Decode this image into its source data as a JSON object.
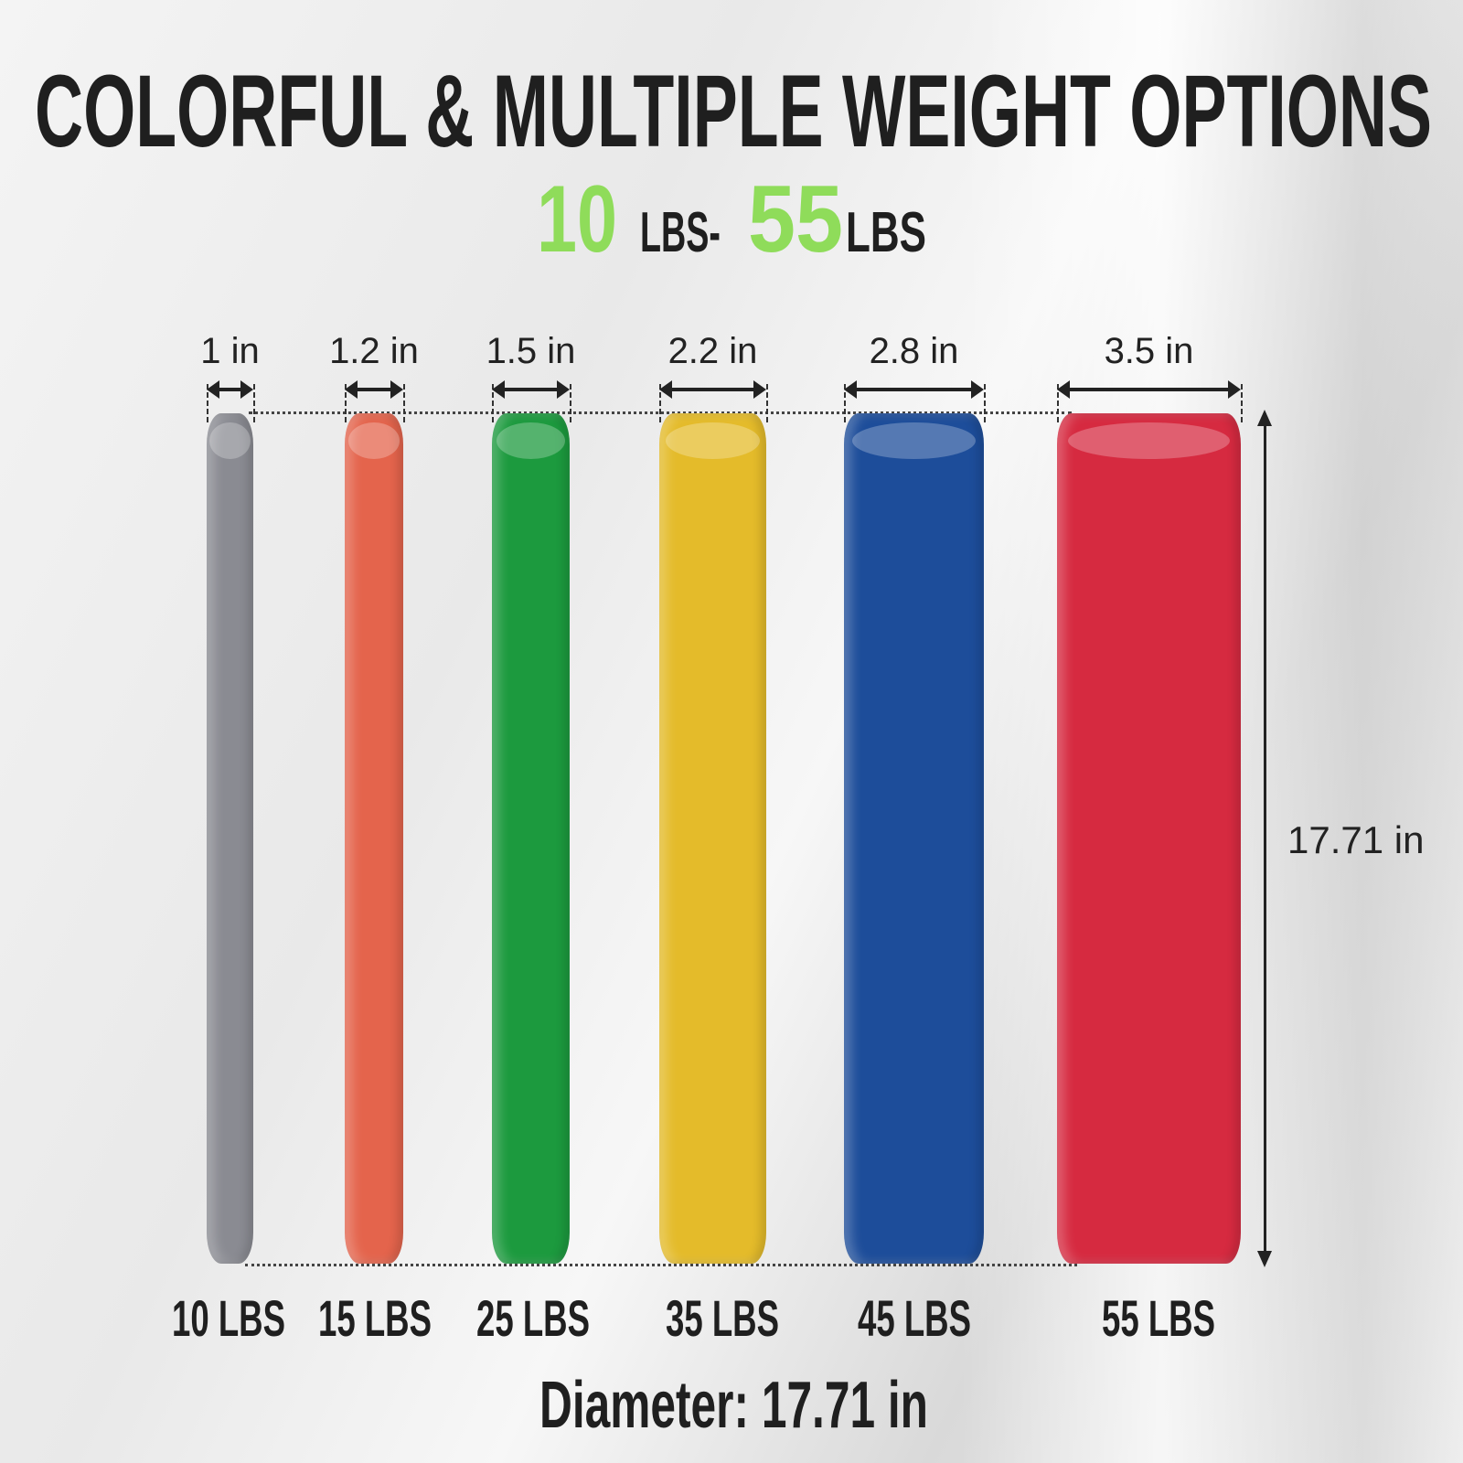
{
  "title": "COLORFUL & MULTIPLE WEIGHT OPTIONS",
  "subtitle": {
    "min_value": "10",
    "min_unit": "LBS-",
    "max_value": "55",
    "max_unit": "LBS"
  },
  "accent_color": "#8fdc5a",
  "plates": [
    {
      "weight": "10 LBS",
      "thickness": "1 in",
      "color": "#8a8b92"
    },
    {
      "weight": "15 LBS",
      "thickness": "1.2 in",
      "color": "#e4644c"
    },
    {
      "weight": "25 LBS",
      "thickness": "1.5 in",
      "color": "#1c9a3e"
    },
    {
      "weight": "35 LBS",
      "thickness": "2.2 in",
      "color": "#e4bb2a"
    },
    {
      "weight": "45 LBS",
      "thickness": "2.8 in",
      "color": "#1d4d9a"
    },
    {
      "weight": "55 LBS",
      "thickness": "3.5 in",
      "color": "#d62a40"
    }
  ],
  "height_label": "17.71 in",
  "diameter": "Diameter: 17.71 in"
}
